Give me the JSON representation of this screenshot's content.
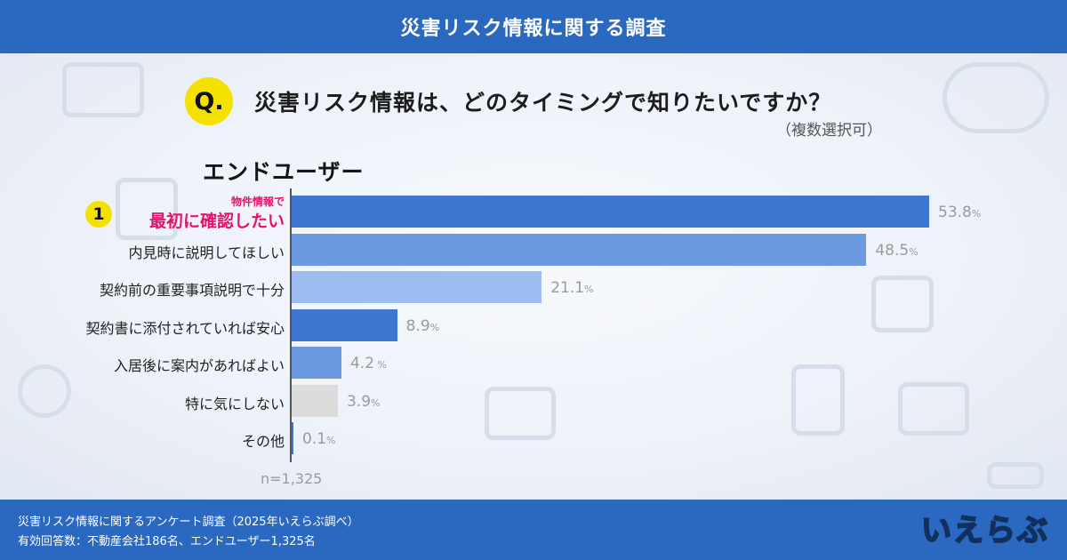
{
  "header": {
    "title": "災害リスク情報に関する調査"
  },
  "question": {
    "badge": "Q.",
    "text": "災害リスク情報は、どのタイミングで知りたいですか？",
    "note": "（複数選択可）"
  },
  "segment_title": "エンドユーザー",
  "highlight": {
    "rank": "1",
    "line1": "物件情報で",
    "line2": "最初に確認したい"
  },
  "colors": {
    "header_bg": "#2b69c0",
    "highlight_text": "#e5136d",
    "badge_yellow": "#f5e100"
  },
  "chart_data": {
    "type": "bar",
    "orientation": "horizontal",
    "categories": [
      "物件情報で最初に確認したい",
      "内見時に説明してほしい",
      "契約前の重要事項説明で十分",
      "契約書に添付されていれば安心",
      "入居後に案内があればよい",
      "特に気にしない",
      "その他"
    ],
    "category_labels": [
      "",
      "内見時に説明してほしい",
      "契約前の重要事項説明で十分",
      "契約書に添付されていれば安心",
      "入居後に案内があればよい",
      "特に気にしない",
      "その他"
    ],
    "values": [
      53.8,
      48.5,
      21.1,
      8.9,
      4.2,
      3.9,
      0.1
    ],
    "value_labels": [
      "53.8",
      "48.5",
      "21.1",
      "8.9",
      "4.2",
      "3.9",
      "0.1"
    ],
    "value_suffixes": [
      "%",
      "%",
      "%",
      "%",
      " %",
      "%",
      "%"
    ],
    "bar_colors": [
      "#3e76d1",
      "#6b9ae0",
      "#9dbcef",
      "#3e76d1",
      "#6b9ae0",
      "#dcdcdc",
      "#3e76d1"
    ],
    "xlim": [
      0,
      60
    ],
    "unit": "%",
    "sample": "n=1,325"
  },
  "footer": {
    "line1": "災害リスク情報に関するアンケート調査（2025年いえらぶ調べ）",
    "line2": "有効回答数：不動産会社186名、エンドユーザー1,325名",
    "logo_chars": [
      "い",
      "え",
      "ら",
      "ぶ"
    ]
  }
}
